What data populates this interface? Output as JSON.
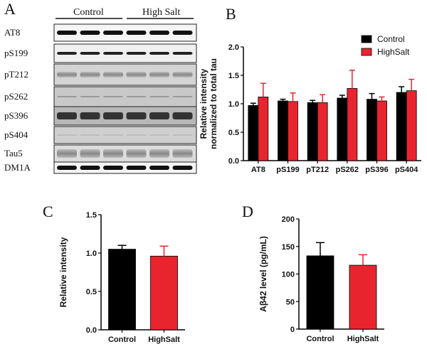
{
  "panels": {
    "a": "A",
    "b": "B",
    "c": "C",
    "d": "D"
  },
  "blot": {
    "groups": [
      "Control",
      "High Salt"
    ],
    "rows": [
      "AT8",
      "pS199",
      "pT212",
      "pS262",
      "pS396",
      "pS404",
      "Tau5",
      "DM1A"
    ]
  },
  "chart_data": [
    {
      "type": "bar",
      "panel": "B",
      "categories": [
        "AT8",
        "pS199",
        "pT212",
        "pS262",
        "pS396",
        "pS404"
      ],
      "series": [
        {
          "name": "Control",
          "color": "#000000",
          "values": [
            0.97,
            1.05,
            1.02,
            1.1,
            1.08,
            1.2
          ],
          "errors": [
            0.04,
            0.03,
            0.04,
            0.05,
            0.1,
            0.1
          ]
        },
        {
          "name": "HighSalt",
          "color": "#e8252e",
          "values": [
            1.12,
            1.04,
            1.02,
            1.27,
            1.05,
            1.23
          ],
          "errors": [
            0.24,
            0.15,
            0.14,
            0.32,
            0.07,
            0.2
          ]
        }
      ],
      "ylabel": [
        "Relative intensity",
        "normalized to total tau"
      ],
      "ylim": [
        0,
        2.0
      ],
      "yticks": [
        "0.0",
        "0.5",
        "1.0",
        "1.5",
        "2.0"
      ],
      "legend": "top-right"
    },
    {
      "type": "bar",
      "panel": "C",
      "categories": [
        "Control",
        "HighSalt"
      ],
      "values": [
        1.05,
        0.96
      ],
      "errors": [
        0.05,
        0.13
      ],
      "colors": [
        "#000000",
        "#e8252e"
      ],
      "ylabel": "Relative intensity",
      "ylim": [
        0,
        1.5
      ],
      "yticks": [
        "0.0",
        "0.5",
        "1.0",
        "1.5"
      ]
    },
    {
      "type": "bar",
      "panel": "D",
      "categories": [
        "Control",
        "HighSalt"
      ],
      "values": [
        133,
        116
      ],
      "errors": [
        24,
        19
      ],
      "colors": [
        "#000000",
        "#e8252e"
      ],
      "ylabel": "Aβ42 level (pg/mL)",
      "ylim": [
        0,
        200
      ],
      "yticks": [
        "0",
        "50",
        "100",
        "150",
        "200"
      ]
    }
  ]
}
